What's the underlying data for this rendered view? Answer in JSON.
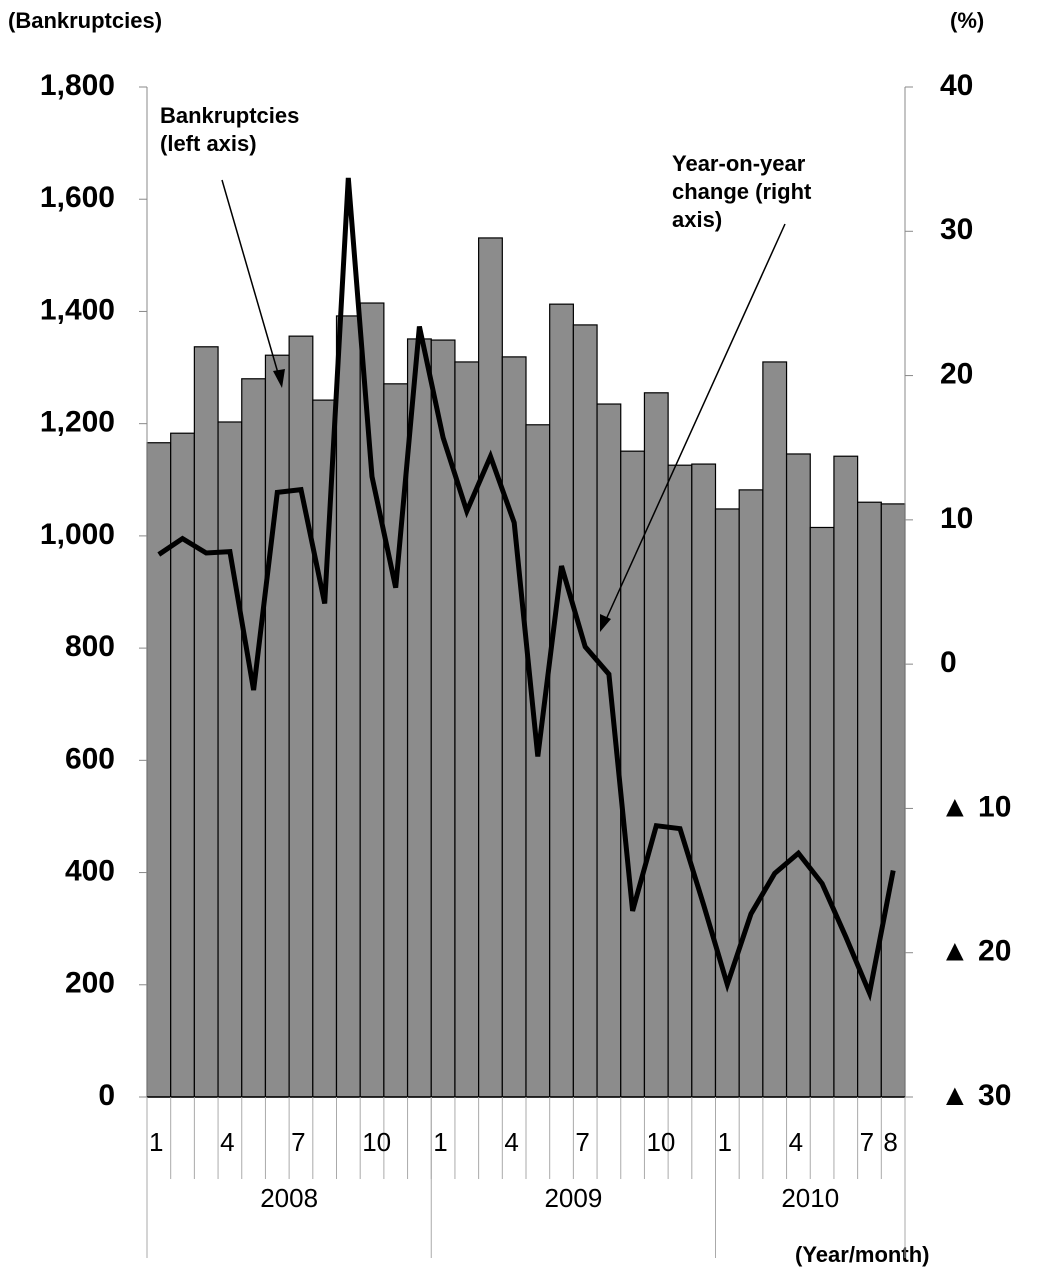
{
  "chart_data": {
    "type": "bar_line",
    "y_axis_label": "(Bankruptcies)",
    "y2_axis_label": "(%)",
    "x_axis_label": "(Year/month)",
    "categories": [
      "1",
      null,
      null,
      "4",
      null,
      null,
      "7",
      null,
      null,
      "10",
      null,
      null,
      "1",
      null,
      null,
      "4",
      null,
      null,
      "7",
      null,
      null,
      "10",
      null,
      null,
      "1",
      null,
      null,
      "4",
      null,
      null,
      "7",
      "8"
    ],
    "years": [
      "2008",
      "2009",
      "2010"
    ],
    "series": [
      {
        "name": "Bankruptcies",
        "type": "bar",
        "color": "#8c8c8c",
        "values": [
          1166,
          1183,
          1337,
          1203,
          1280,
          1322,
          1356,
          1242,
          1392,
          1415,
          1271,
          1351,
          1349,
          1310,
          1531,
          1319,
          1198,
          1413,
          1376,
          1235,
          1151,
          1255,
          1126,
          1128,
          1048,
          1082,
          1310,
          1146,
          1015,
          1142,
          1060,
          1057
        ]
      },
      {
        "name": "Year-on-year change",
        "type": "line",
        "axis": "y2",
        "color": "#000000",
        "values": [
          7.6,
          8.7,
          7.7,
          7.8,
          -1.8,
          11.9,
          12.1,
          4.2,
          33.7,
          13.0,
          5.3,
          23.4,
          15.7,
          10.6,
          14.4,
          9.8,
          -6.4,
          6.8,
          1.2,
          -0.7,
          -17.1,
          -11.2,
          -11.4,
          -16.7,
          -22.2,
          -17.3,
          -14.5,
          -13.1,
          -15.2,
          -18.9,
          -22.8,
          -14.3
        ]
      }
    ],
    "ylim": [
      0,
      1800
    ],
    "yticks": [
      0,
      200,
      400,
      600,
      800,
      {
        "value": 1000,
        "label": "1,000"
      },
      {
        "value": 1200,
        "label": "1,200"
      },
      {
        "value": 1400,
        "label": "1,400"
      },
      {
        "value": 1600,
        "label": "1,600"
      },
      {
        "value": 1800,
        "label": "1,800"
      }
    ],
    "y2lim": [
      -30,
      40
    ],
    "y2ticks": [
      {
        "value": -30,
        "label": "▲ 30"
      },
      {
        "value": -20,
        "label": "▲ 20"
      },
      {
        "value": -10,
        "label": "▲ 10"
      },
      0,
      10,
      20,
      30,
      40
    ],
    "annotations": [
      {
        "lines": [
          "Bankruptcies",
          "(left axis)"
        ]
      },
      {
        "lines": [
          "Year-on-year",
          "change (right",
          "axis)"
        ]
      }
    ]
  }
}
